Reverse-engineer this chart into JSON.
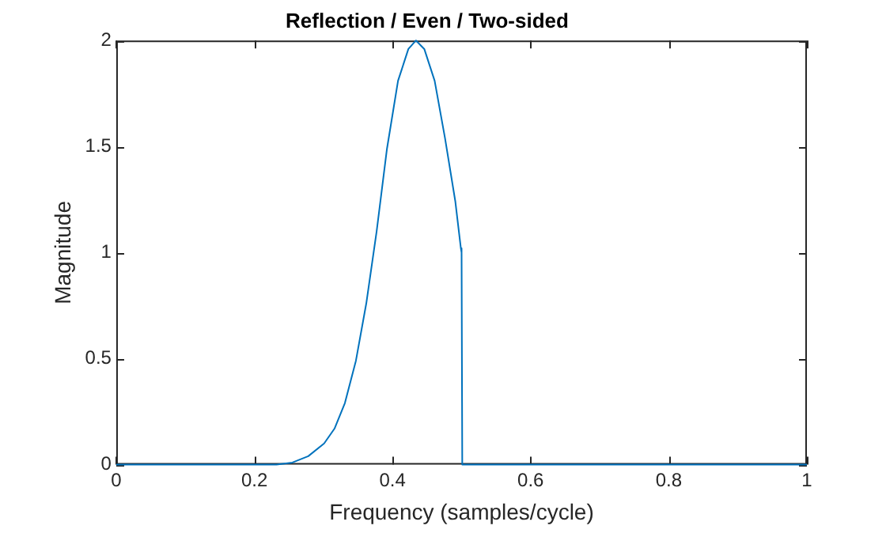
{
  "chart_data": {
    "type": "line",
    "title": "Reflection / Even / Two-sided",
    "xlabel": "Frequency (samples/cycle)",
    "ylabel": "Magnitude",
    "x": [
      0,
      0.2,
      0.232,
      0.255,
      0.278,
      0.301,
      0.316,
      0.331,
      0.347,
      0.362,
      0.377,
      0.392,
      0.408,
      0.423,
      0.434,
      0.446,
      0.461,
      0.476,
      0.491,
      0.499,
      0.5,
      0.501,
      1
    ],
    "series": [
      {
        "color": "#0072bd",
        "values": [
          0,
          0,
          0,
          0.01,
          0.04,
          0.1,
          0.17,
          0.29,
          0.49,
          0.76,
          1.1,
          1.49,
          1.81,
          1.96,
          2,
          1.96,
          1.81,
          1.54,
          1.24,
          1.02,
          1,
          0,
          0
        ]
      }
    ],
    "xlim": [
      0,
      1
    ],
    "xticks": [
      0,
      0.2,
      0.4,
      0.6,
      0.8,
      1
    ],
    "ylim": [
      0,
      2
    ],
    "yticks": [
      0,
      0.5,
      1,
      1.5,
      2
    ],
    "grid": false,
    "legend": false,
    "marker": "none",
    "line_style": "solid"
  }
}
